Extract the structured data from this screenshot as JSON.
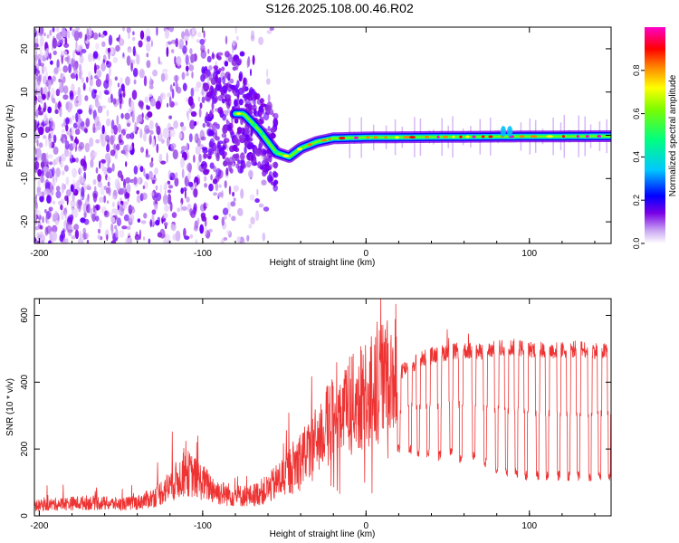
{
  "page": {
    "title": "S126.2025.108.00.46.R02"
  },
  "colors": {
    "snr_line": "#ee3333",
    "colormap": [
      "#ffffff",
      "#e9d4fa",
      "#8a2be2",
      "#0000ff",
      "#00bfff",
      "#00ff7f",
      "#7cfc00",
      "#ffff00",
      "#ff7f00",
      "#ff0000",
      "#ff00ff"
    ]
  },
  "chart_data": [
    {
      "id": "spectrogram",
      "type": "heatmap",
      "title": "",
      "xlabel": "Height of straight line (km)",
      "ylabel": "Frequency (Hz)",
      "xlim": [
        -203,
        150
      ],
      "ylim": [
        -25,
        25
      ],
      "xticks": [
        -200,
        -100,
        0,
        100
      ],
      "yticks": [
        -20,
        -10,
        0,
        10,
        20
      ],
      "xtick_labels": [
        "-200",
        "-100",
        "0",
        "100"
      ],
      "ytick_labels": [
        "-20",
        "-10",
        "0",
        "10",
        "20"
      ],
      "colorbar": {
        "label": "Normalized spectral amplitude",
        "range": [
          0,
          1
        ],
        "ticks": [
          0.0,
          0.2,
          0.4,
          0.6,
          0.8
        ],
        "tick_labels": [
          "0.0",
          "0.2",
          "0.4",
          "0.6",
          "0.8"
        ]
      },
      "ridge": [
        {
          "x": -75,
          "freq": 5
        },
        {
          "x": -65,
          "freq": 1
        },
        {
          "x": -55,
          "freq": -4
        },
        {
          "x": -47,
          "freq": -5
        },
        {
          "x": -40,
          "freq": -3
        },
        {
          "x": -30,
          "freq": -1.5
        },
        {
          "x": -20,
          "freq": -0.7
        },
        {
          "x": 0,
          "freq": -0.5
        },
        {
          "x": 80,
          "freq": -0.3
        },
        {
          "x": 150,
          "freq": -0.2
        }
      ],
      "grid": false,
      "legend": "none"
    },
    {
      "id": "snr",
      "type": "line",
      "title": "",
      "xlabel": "Height of straight line (km)",
      "ylabel": "SNR (10 * v/v)",
      "xlim": [
        -203,
        150
      ],
      "ylim": [
        0,
        650
      ],
      "xticks": [
        -200,
        -100,
        0,
        100
      ],
      "yticks": [
        0,
        200,
        400,
        600
      ],
      "xtick_labels": [
        "-200",
        "-100",
        "0",
        "100"
      ],
      "ytick_labels": [
        "0",
        "200",
        "400",
        "600"
      ],
      "series": [
        {
          "x": [
            -203,
            -190,
            -170,
            -150,
            -140,
            -130,
            -120,
            -110,
            -100,
            -90,
            -80,
            -70,
            -60,
            -50,
            -40,
            -30,
            -20,
            -10,
            0,
            10,
            20,
            30,
            40,
            50,
            60,
            70,
            80,
            90,
            100,
            110,
            120,
            130,
            140,
            150
          ],
          "values": [
            30,
            35,
            40,
            35,
            40,
            55,
            90,
            130,
            100,
            70,
            60,
            60,
            80,
            120,
            170,
            230,
            290,
            330,
            360,
            400,
            430,
            460,
            480,
            490,
            495,
            490,
            500,
            505,
            500,
            495,
            495,
            500,
            495,
            490
          ]
        }
      ],
      "dips": [
        {
          "x": 20,
          "value": 200
        },
        {
          "x": 27,
          "value": 200
        },
        {
          "x": 32,
          "value": 190
        },
        {
          "x": 38,
          "value": 190
        },
        {
          "x": 45,
          "value": 180
        },
        {
          "x": 52,
          "value": 190
        },
        {
          "x": 58,
          "value": 170
        },
        {
          "x": 66,
          "value": 180
        },
        {
          "x": 73,
          "value": 160
        },
        {
          "x": 80,
          "value": 140
        },
        {
          "x": 86,
          "value": 130
        },
        {
          "x": 92,
          "value": 130
        },
        {
          "x": 98,
          "value": 120
        },
        {
          "x": 105,
          "value": 120
        },
        {
          "x": 111,
          "value": 120
        },
        {
          "x": 118,
          "value": 120
        },
        {
          "x": 124,
          "value": 120
        },
        {
          "x": 130,
          "value": 120
        },
        {
          "x": 137,
          "value": 115
        },
        {
          "x": 143,
          "value": 115
        },
        {
          "x": 149,
          "value": 120
        }
      ],
      "grid": false,
      "legend": "none"
    }
  ]
}
